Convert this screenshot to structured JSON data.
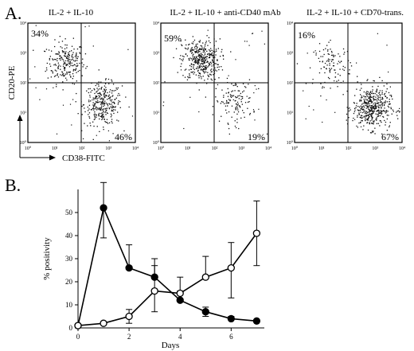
{
  "panel_a_label": "A.",
  "panel_b_label": "B.",
  "chart_data": [
    {
      "type": "scatter",
      "title": "IL-2 + IL-10",
      "ylabel": "CD20-PE",
      "xlabel": "CD38-FITC",
      "axis": "log",
      "xlim": [
        1,
        10000
      ],
      "ylim": [
        1,
        10000
      ],
      "quadrant_line": [
        100,
        100
      ],
      "tick_labels": [
        "10⁰",
        "10¹",
        "10²",
        "10³",
        "10⁴"
      ],
      "quadrant_percentages": {
        "upper_left": "34%",
        "lower_right": "46%"
      },
      "clusters": [
        {
          "x": 25,
          "y": 500,
          "share": 0.34
        },
        {
          "x": 600,
          "y": 20,
          "share": 0.46
        }
      ]
    },
    {
      "type": "scatter",
      "title": "IL-2 + IL-10 + anti-CD40 mAb",
      "axis": "log",
      "xlim": [
        1,
        10000
      ],
      "ylim": [
        1,
        10000
      ],
      "quadrant_line": [
        100,
        100
      ],
      "tick_labels": [
        "10⁰",
        "10¹",
        "10²",
        "10³",
        "10⁴"
      ],
      "quadrant_percentages": {
        "upper_left": "59%",
        "lower_right": "19%"
      },
      "clusters": [
        {
          "x": 30,
          "y": 600,
          "share": 0.59
        },
        {
          "x": 500,
          "y": 25,
          "share": 0.19
        }
      ]
    },
    {
      "type": "scatter",
      "title": "IL-2 + IL-10 + CD70-trans.",
      "axis": "log",
      "xlim": [
        1,
        10000
      ],
      "ylim": [
        1,
        10000
      ],
      "quadrant_line": [
        100,
        100
      ],
      "tick_labels": [
        "10⁰",
        "10¹",
        "10²",
        "10³",
        "10⁴"
      ],
      "quadrant_percentages": {
        "upper_left": "16%",
        "lower_right": "67%"
      },
      "clusters": [
        {
          "x": 25,
          "y": 400,
          "share": 0.16
        },
        {
          "x": 700,
          "y": 15,
          "share": 0.67
        }
      ]
    },
    {
      "type": "line",
      "xlabel": "Days",
      "ylabel": "% positivity",
      "xlim": [
        0,
        7.3
      ],
      "ylim": [
        0,
        60
      ],
      "xticks": [
        0,
        2,
        4,
        6
      ],
      "yticks": [
        0,
        10,
        20,
        30,
        40,
        50
      ],
      "series": [
        {
          "marker": "filled-circle",
          "x": [
            0,
            1,
            2,
            3,
            4,
            5,
            6,
            7
          ],
          "y": [
            1,
            52,
            26,
            22,
            12,
            7,
            4,
            3
          ],
          "err_up": [
            0,
            11,
            10,
            8,
            4,
            2,
            1,
            0
          ],
          "err_down": [
            0,
            13,
            0,
            0,
            0,
            2,
            0,
            0
          ]
        },
        {
          "marker": "open-circle",
          "x": [
            0,
            1,
            2,
            3,
            4,
            5,
            6,
            7
          ],
          "y": [
            1,
            2,
            5,
            16,
            15,
            22,
            26,
            41
          ],
          "err_up": [
            0,
            0,
            3,
            11,
            7,
            9,
            11,
            14
          ],
          "err_down": [
            0,
            0,
            3,
            9,
            0,
            0,
            13,
            14
          ]
        }
      ]
    }
  ]
}
